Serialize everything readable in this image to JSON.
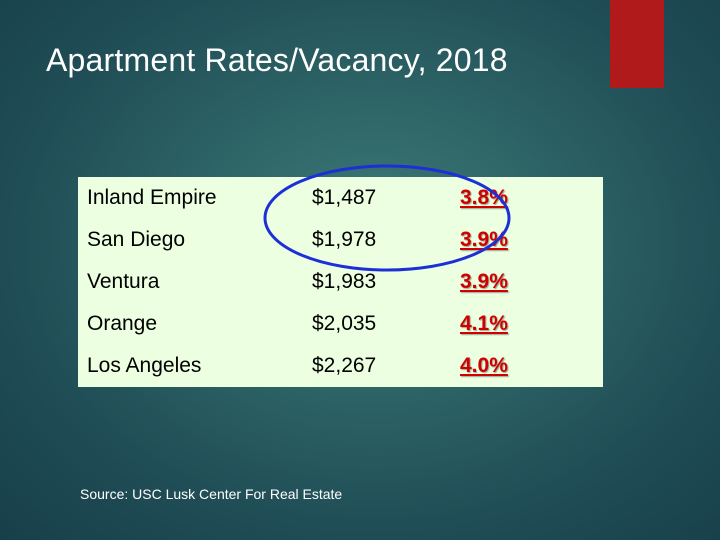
{
  "title": "Apartment Rates/Vacancy, 2018",
  "rows": [
    {
      "region": "Inland Empire",
      "rent": "$1,487",
      "vacancy": "3.8%"
    },
    {
      "region": "San Diego",
      "rent": "$1,978",
      "vacancy": "3.9%"
    },
    {
      "region": "Ventura",
      "rent": "$1,983",
      "vacancy": "3.9%"
    },
    {
      "region": "Orange",
      "rent": "$2,035",
      "vacancy": "4.1%"
    },
    {
      "region": "Los Angeles",
      "rent": "$2,267",
      "vacancy": "4.0%"
    }
  ],
  "source": "Source:  USC Lusk Center For Real Estate",
  "colors": {
    "accent": "#b01a1a",
    "vacancy_text": "#d10000",
    "table_bg": "#ecffe0",
    "ellipse": "#1d2fd6"
  }
}
